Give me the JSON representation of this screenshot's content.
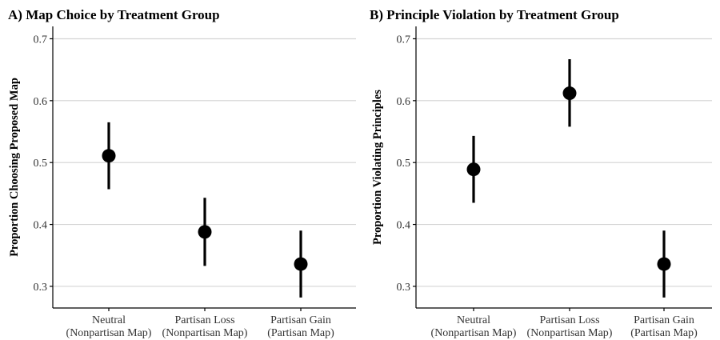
{
  "chart_data": [
    {
      "type": "scatter",
      "title": "A) Map Choice by Treatment Group",
      "ylabel": "Proportion Choosing Proposed Map",
      "xlabel": "",
      "ylim": [
        0.265,
        0.72
      ],
      "yticks": [
        0.3,
        0.4,
        0.5,
        0.6,
        0.7
      ],
      "grid": true,
      "categories": [
        [
          "Neutral",
          "(Nonpartisan Map)"
        ],
        [
          "Partisan Loss",
          "(Nonpartisan Map)"
        ],
        [
          "Partisan Gain",
          "(Partisan Map)"
        ]
      ],
      "points": [
        {
          "estimate": 0.511,
          "lower": 0.457,
          "upper": 0.565
        },
        {
          "estimate": 0.388,
          "lower": 0.333,
          "upper": 0.443
        },
        {
          "estimate": 0.336,
          "lower": 0.282,
          "upper": 0.39
        }
      ]
    },
    {
      "type": "scatter",
      "title": "B) Principle Violation by Treatment Group",
      "ylabel": "Proportion Violating Principles",
      "xlabel": "",
      "ylim": [
        0.265,
        0.72
      ],
      "yticks": [
        0.3,
        0.4,
        0.5,
        0.6,
        0.7
      ],
      "grid": true,
      "categories": [
        [
          "Neutral",
          "(Nonpartisan Map)"
        ],
        [
          "Partisan Loss",
          "(Nonpartisan Map)"
        ],
        [
          "Partisan Gain",
          "(Partisan Map)"
        ]
      ],
      "points": [
        {
          "estimate": 0.489,
          "lower": 0.435,
          "upper": 0.543
        },
        {
          "estimate": 0.612,
          "lower": 0.558,
          "upper": 0.667
        },
        {
          "estimate": 0.336,
          "lower": 0.282,
          "upper": 0.39
        }
      ]
    }
  ],
  "colors": {
    "point": "#000000",
    "grid": "#d4d4d4",
    "axis": "#000000"
  }
}
